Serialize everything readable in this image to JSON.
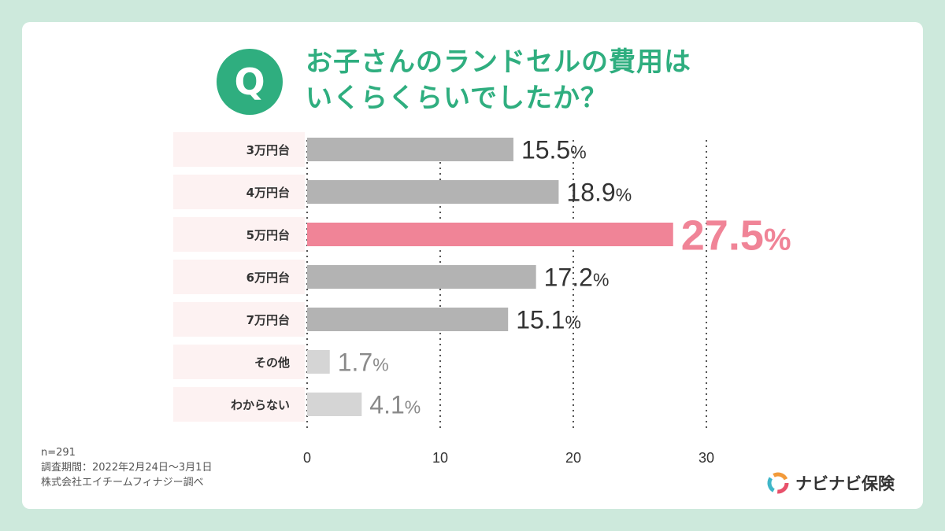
{
  "question": {
    "badge": "Q",
    "line1": "お子さんのランドセルの費用は",
    "line2": "いくらくらいでしたか？"
  },
  "chart_data": {
    "type": "bar",
    "orientation": "horizontal",
    "categories": [
      "3万円台",
      "4万円台",
      "5万円台",
      "6万円台",
      "7万円台",
      "その他",
      "わからない"
    ],
    "values": [
      15.5,
      18.9,
      27.5,
      17.2,
      15.1,
      1.7,
      4.1
    ],
    "value_suffix": "%",
    "xticks": [
      0,
      10,
      20,
      30
    ],
    "xlim": [
      0,
      30
    ],
    "grid": "vertical dotted",
    "highlight_index": 2,
    "colors": {
      "bar": "#b3b3b3",
      "bar_light": "#d5d5d5",
      "highlight": "#f08497",
      "label_bg": "#fdf2f2",
      "text": "#333333",
      "text_light": "#8a8a8a"
    }
  },
  "footnote": {
    "sample": "n=291",
    "period": "調査期間：2022年2月24日～3月1日",
    "source": "株式会社エイチームフィナジー調べ"
  },
  "logo": {
    "text": "ナビナビ保険",
    "icon": "navinavi-logo-icon"
  }
}
